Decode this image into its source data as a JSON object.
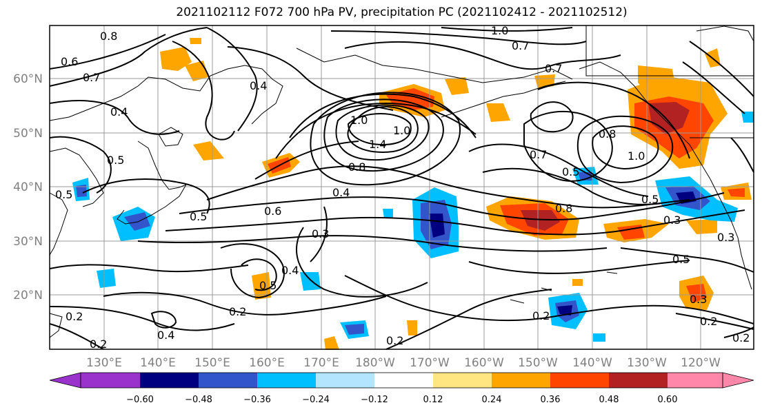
{
  "title": "2021102112 F072 700 hPa PV, precipitation PC (2021102412 - 2021102512)",
  "axes": {
    "lat_labels": [
      "60°N",
      "50°N",
      "40°N",
      "30°N",
      "20°N"
    ],
    "lon_labels": [
      "130°E",
      "140°E",
      "150°E",
      "160°E",
      "170°E",
      "180°W",
      "170°W",
      "160°W",
      "150°W",
      "140°W",
      "130°W",
      "120°W"
    ],
    "grid": true
  },
  "contour_labels": [
    "0.8",
    "0.6",
    "0.7",
    "0.4",
    "0.4",
    "0.5",
    "0.5",
    "0.5",
    "0.6",
    "0.3",
    "0.4",
    "0.8",
    "1.0",
    "1.4",
    "1.0",
    "0.7",
    "0.5",
    "0.8",
    "1.0",
    "0.8",
    "0.7",
    "0.5",
    "0.3",
    "0.3",
    "0.5",
    "0.2",
    "0.2",
    "0.2",
    "0.2",
    "0.4",
    "0.5",
    "0.4",
    "0.2",
    "0.3",
    "0.2",
    "1.0",
    "0.7",
    "0.2"
  ],
  "colorbar": {
    "ticks": [
      "−0.60",
      "−0.48",
      "−0.36",
      "−0.24",
      "−0.12",
      "0.12",
      "0.24",
      "0.36",
      "0.48",
      "0.60"
    ],
    "colors": [
      "#9933cc",
      "#000080",
      "#3355cc",
      "#00bfff",
      "#b3e5ff",
      "#ffffff",
      "#ffe680",
      "#ffa500",
      "#ff4500",
      "#b22222",
      "#ff88aa"
    ]
  }
}
